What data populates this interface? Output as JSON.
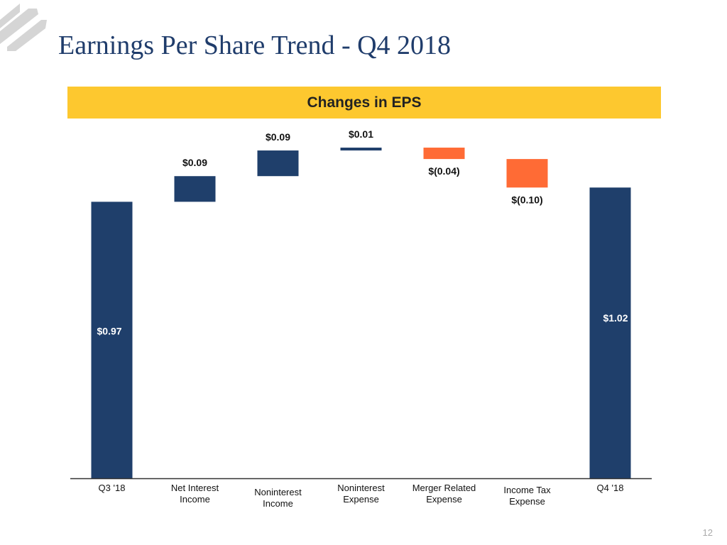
{
  "title": "Earnings Per Share Trend - Q4 2018",
  "page_number": "12",
  "colors": {
    "positive": "#1f3f6b",
    "negative": "#ff6b35",
    "banner": "#fdc82f",
    "title": "#1f3c6b"
  },
  "chart_data": {
    "type": "bar",
    "subtype": "waterfall",
    "title": "Changes in EPS",
    "categories": [
      "Q3 '18",
      "Net Interest Income",
      "Noninterest Income",
      "Noninterest Expense",
      "Merger Related Expense",
      "Income Tax Expense",
      "Q4 '18"
    ],
    "category_lines": [
      [
        "Q3 '18"
      ],
      [
        "Net Interest",
        "Income"
      ],
      [
        "Noninterest",
        "Income"
      ],
      [
        "Noninterest",
        "Expense"
      ],
      [
        "Merger Related",
        "Expense"
      ],
      [
        "Income Tax",
        "Expense"
      ],
      [
        "Q4 '18"
      ]
    ],
    "values": [
      0.97,
      0.09,
      0.09,
      0.01,
      -0.04,
      -0.1,
      1.02
    ],
    "kinds": [
      "total",
      "delta",
      "delta",
      "delta",
      "delta",
      "delta",
      "total"
    ],
    "labels": [
      "$0.97",
      "$0.09",
      "$0.09",
      "$0.01",
      "$(0.04)",
      "$(0.10)",
      "$1.02"
    ],
    "ylim": [
      0,
      1.18
    ],
    "grid": false,
    "legend": "none"
  }
}
